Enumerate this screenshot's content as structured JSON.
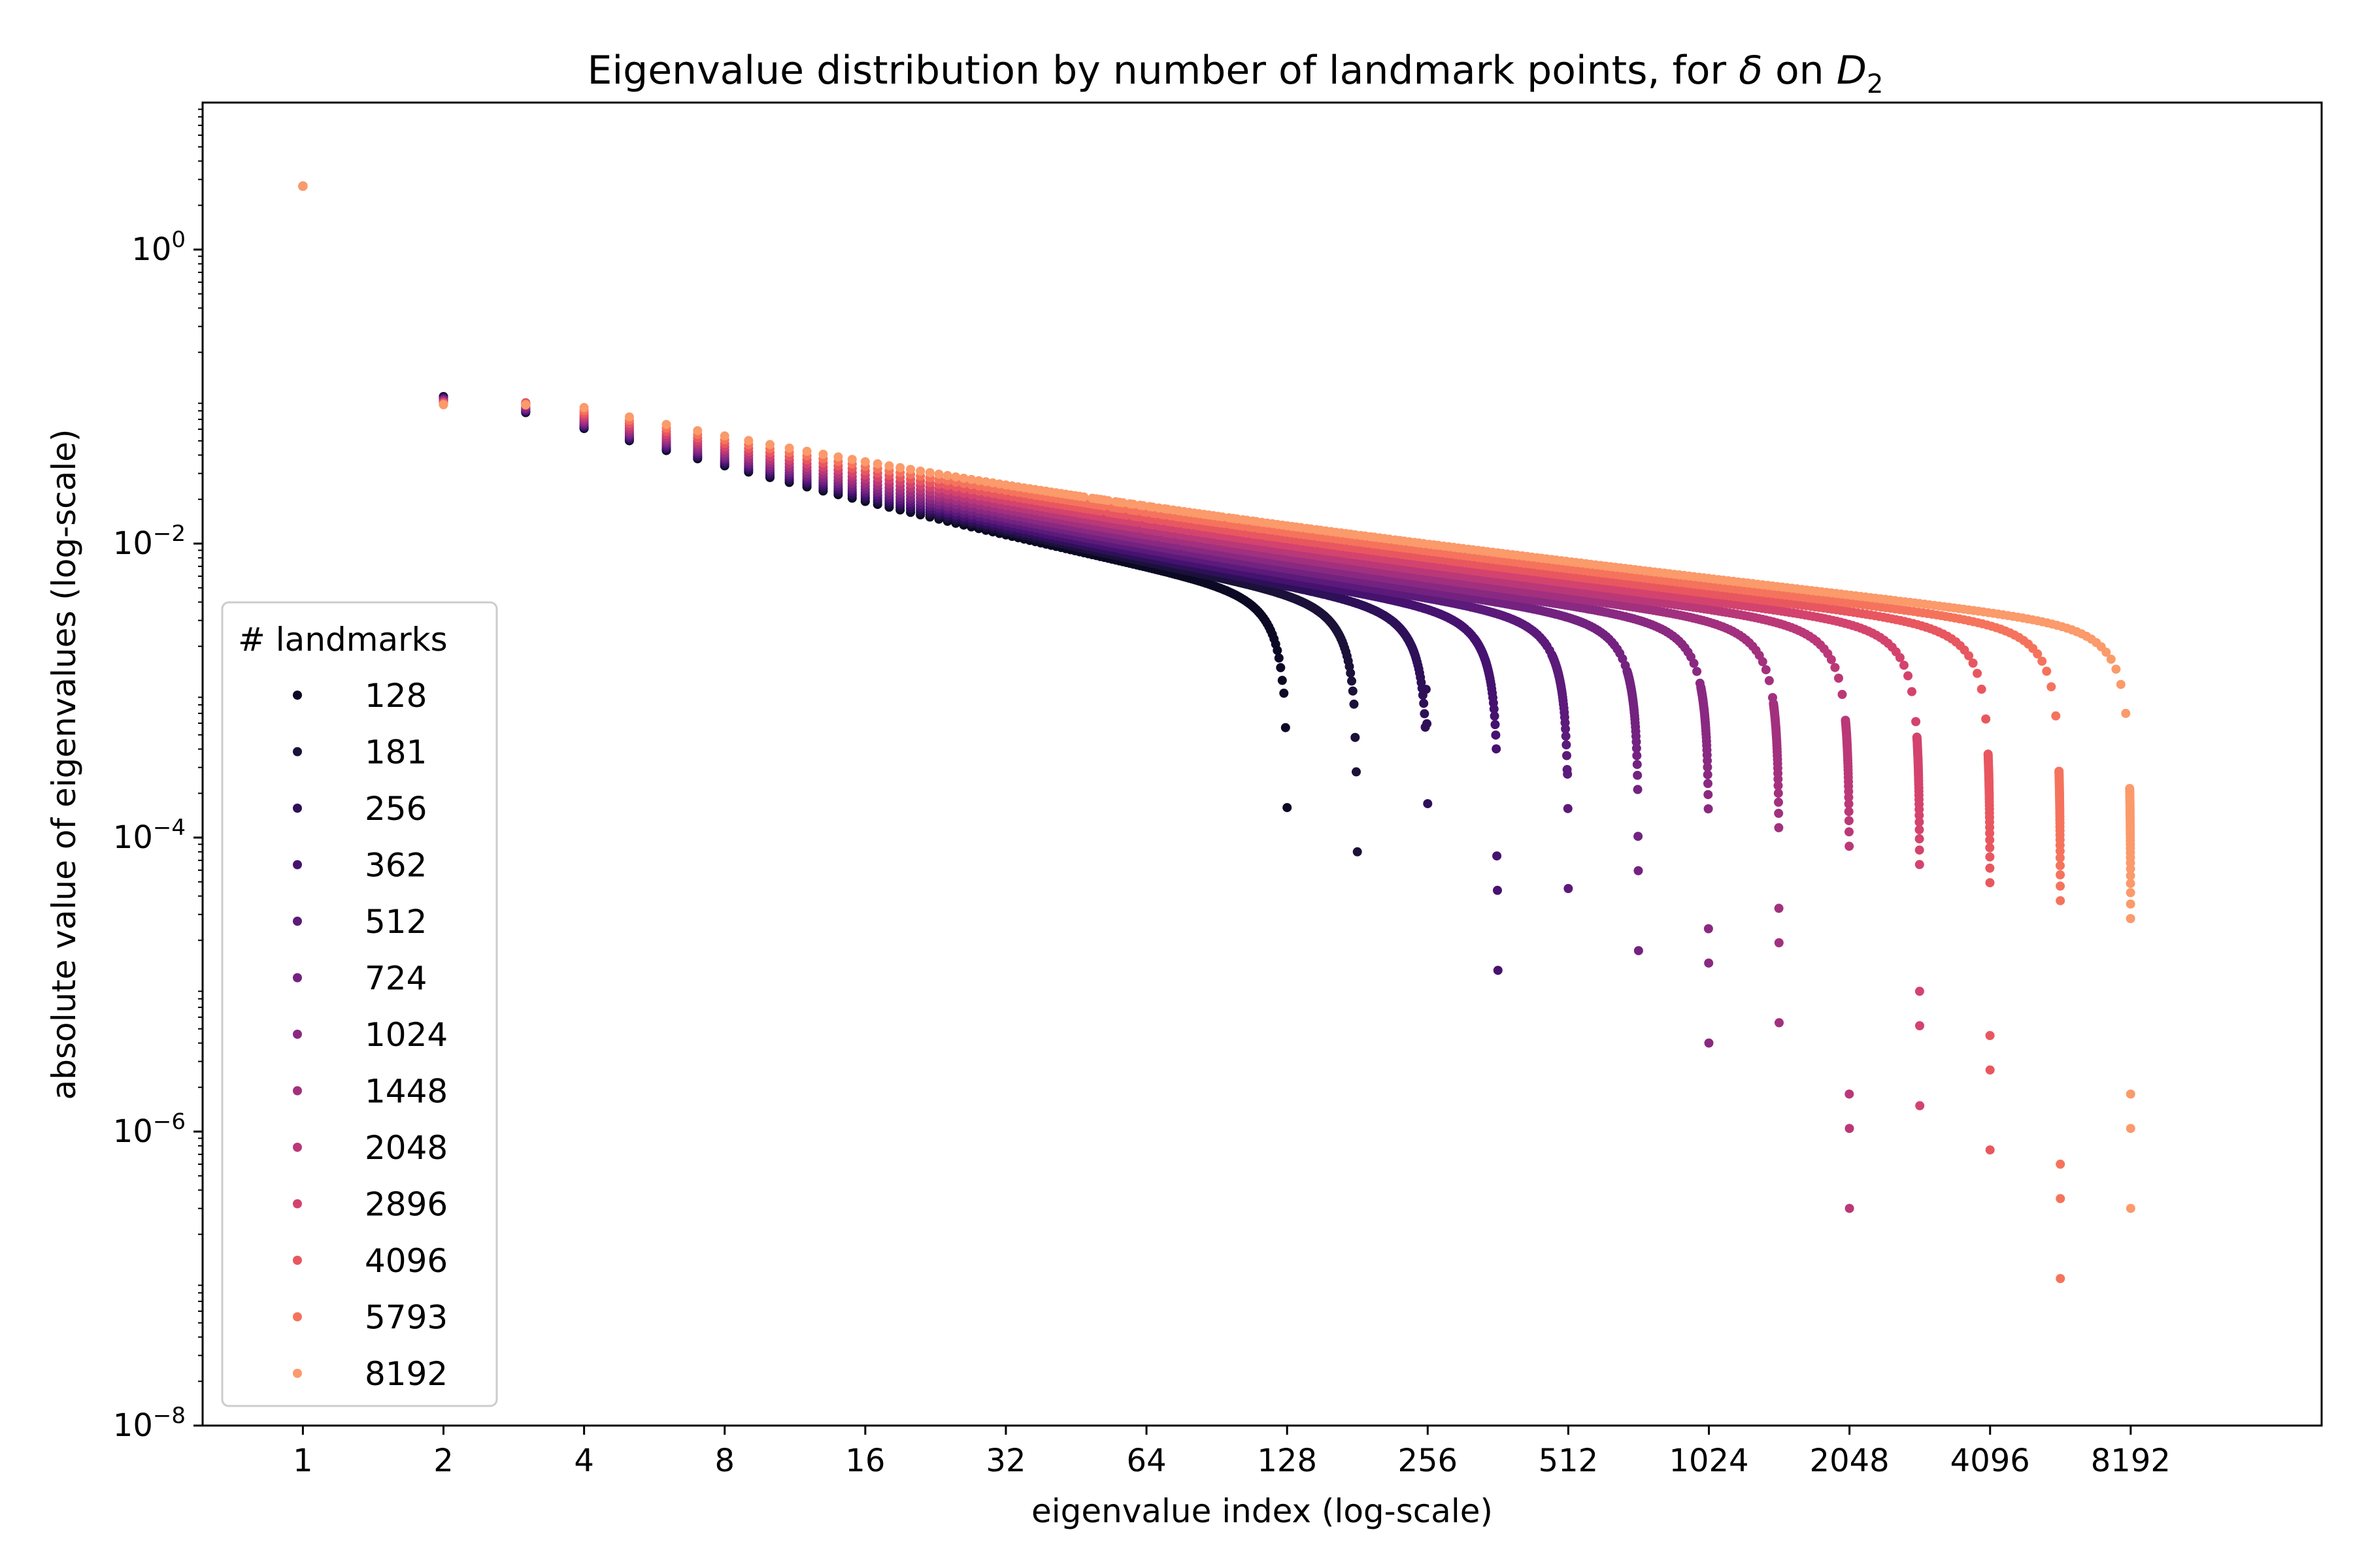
{
  "chart_data": {
    "type": "scatter",
    "title": {
      "prefix": "Eigenvalue distribution by number of landmark points, for ",
      "symbol": "δ",
      "middle": " on ",
      "var": "D",
      "sub": "2"
    },
    "xlabel": "eigenvalue index (log-scale)",
    "ylabel": "absolute value of eigenvalues (log-scale)",
    "x_scale": "log2",
    "y_scale": "log10",
    "xlim": [
      0.61,
      21000
    ],
    "ylim": [
      1e-08,
      10
    ],
    "x_ticks": [
      {
        "value": 1,
        "label": "1"
      },
      {
        "value": 2,
        "label": "2"
      },
      {
        "value": 4,
        "label": "4"
      },
      {
        "value": 8,
        "label": "8"
      },
      {
        "value": 16,
        "label": "16"
      },
      {
        "value": 32,
        "label": "32"
      },
      {
        "value": 64,
        "label": "64"
      },
      {
        "value": 128,
        "label": "128"
      },
      {
        "value": 256,
        "label": "256"
      },
      {
        "value": 512,
        "label": "512"
      },
      {
        "value": 1024,
        "label": "1024"
      },
      {
        "value": 2048,
        "label": "2048"
      },
      {
        "value": 4096,
        "label": "4096"
      },
      {
        "value": 8192,
        "label": "8192"
      }
    ],
    "y_ticks": [
      {
        "value": 1,
        "base": "10",
        "exp": "0"
      },
      {
        "value": 0.01,
        "base": "10",
        "exp": "−2"
      },
      {
        "value": 0.0001,
        "base": "10",
        "exp": "−4"
      },
      {
        "value": 1e-06,
        "base": "10",
        "exp": "−6"
      },
      {
        "value": 1e-08,
        "base": "10",
        "exp": "−8"
      }
    ],
    "grid": false,
    "legend": {
      "title": "# landmarks",
      "placement": "center-left"
    },
    "series": [
      {
        "name": "128",
        "color": "#0b0924",
        "n": 128,
        "first": 2.7,
        "second": 0.1,
        "plateau": 0.0045,
        "tail_min": 0.00016
      },
      {
        "name": "181",
        "color": "#1b1139",
        "n": 181,
        "first": 2.7,
        "second": 0.1,
        "plateau": 0.0045,
        "tail_min": 8e-05
      },
      {
        "name": "256",
        "color": "#2e1059",
        "n": 256,
        "first": 2.7,
        "second": 0.098,
        "plateau": 0.0045,
        "tail_min": 0.00017
      },
      {
        "name": "362",
        "color": "#461270",
        "n": 362,
        "first": 2.7,
        "second": 0.097,
        "plateau": 0.0045,
        "tail_min": 1.25e-05
      },
      {
        "name": "512",
        "color": "#5c1a7a",
        "n": 512,
        "first": 2.7,
        "second": 0.096,
        "plateau": 0.0045,
        "tail_min": 4.5e-05
      },
      {
        "name": "724",
        "color": "#732280",
        "n": 724,
        "first": 2.7,
        "second": 0.095,
        "plateau": 0.0045,
        "tail_min": 1.7e-05
      },
      {
        "name": "1024",
        "color": "#8a2981",
        "n": 1024,
        "first": 2.7,
        "second": 0.094,
        "plateau": 0.0045,
        "tail_min": 4e-06
      },
      {
        "name": "1448",
        "color": "#a2307e",
        "n": 1448,
        "first": 2.7,
        "second": 0.093,
        "plateau": 0.0045,
        "tail_min": 5.5e-06
      },
      {
        "name": "2048",
        "color": "#ba3878",
        "n": 2048,
        "first": 2.7,
        "second": 0.092,
        "plateau": 0.0045,
        "tail_min": 3e-07
      },
      {
        "name": "2896",
        "color": "#d3436e",
        "n": 2896,
        "first": 2.7,
        "second": 0.091,
        "plateau": 0.0045,
        "tail_min": 1.5e-06
      },
      {
        "name": "4096",
        "color": "#e8575f",
        "n": 4096,
        "first": 2.7,
        "second": 0.09,
        "plateau": 0.0045,
        "tail_min": 7.5e-07
      },
      {
        "name": "5793",
        "color": "#f5735c",
        "n": 5793,
        "first": 2.7,
        "second": 0.089,
        "plateau": 0.0045,
        "tail_min": 1e-07
      },
      {
        "name": "8192",
        "color": "#fb9a6a",
        "n": 8192,
        "first": 2.7,
        "second": 0.088,
        "plateau": 0.0045,
        "tail_min": 3e-07
      }
    ]
  }
}
